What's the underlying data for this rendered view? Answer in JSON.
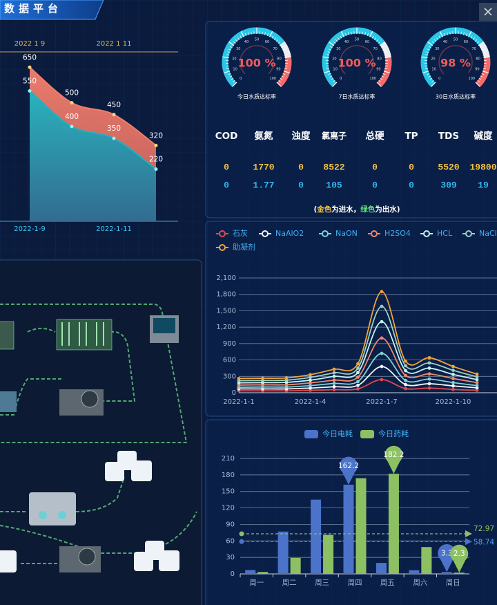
{
  "header": {
    "title": "数据平台"
  },
  "chart_data": [
    {
      "type": "area",
      "categories": [
        "2022-1-9",
        null,
        "2022-1-11",
        null
      ],
      "top_categories": [
        "2022 1 9",
        null,
        "2022 1 11",
        null
      ],
      "series": [
        {
          "color": "#f07c6c",
          "values": [
            650,
            500,
            450,
            320
          ]
        },
        {
          "color": "#1eb2bf",
          "values": [
            550,
            400,
            350,
            220
          ]
        }
      ]
    },
    {
      "type": "gauge",
      "title": "今日水质达标率",
      "values": [
        100
      ],
      "value_labels": [
        "100 %"
      ],
      "ylim": [
        0,
        100
      ],
      "yticks": [
        0,
        10,
        20,
        30,
        40,
        50,
        60,
        70,
        80,
        90,
        100
      ]
    },
    {
      "type": "gauge",
      "title": "7日水质达标率",
      "values": [
        100
      ],
      "value_labels": [
        "100 %"
      ],
      "ylim": [
        0,
        100
      ],
      "yticks": [
        0,
        10,
        20,
        30,
        40,
        50,
        60,
        70,
        80,
        90,
        100
      ]
    },
    {
      "type": "gauge",
      "title": "30日水质达标率",
      "values": [
        98
      ],
      "value_labels": [
        "98 %"
      ],
      "ylim": [
        0,
        100
      ],
      "yticks": [
        0,
        10,
        20,
        30,
        40,
        50,
        60,
        70,
        80,
        90,
        100
      ]
    },
    {
      "type": "line",
      "categories": [
        "2022-1-1",
        null,
        null,
        "2022-1-4",
        null,
        null,
        "2022-1-7",
        null,
        null,
        "2022-1-10",
        null
      ],
      "ylim": [
        0,
        2100
      ],
      "yticks": [
        0,
        300,
        600,
        900,
        {
          "value": 1200,
          "label": "1,200"
        },
        {
          "value": 1500,
          "label": "1,500"
        },
        {
          "value": 1800,
          "label": "1,800"
        },
        {
          "value": 2100,
          "label": "2,100"
        }
      ],
      "grid": true,
      "series": [
        {
          "name": "石灰",
          "color": "#e8484a",
          "values": [
            35,
            35,
            35,
            45,
            55,
            70,
            240,
            75,
            85,
            60,
            45
          ]
        },
        {
          "name": "NaAlO2",
          "color": "#f2f5f8",
          "values": [
            70,
            70,
            70,
            85,
            110,
            135,
            480,
            150,
            165,
            125,
            90
          ]
        },
        {
          "name": "NaON",
          "color": "#7fd3d6",
          "values": [
            100,
            105,
            105,
            130,
            170,
            205,
            720,
            225,
            250,
            185,
            130
          ]
        },
        {
          "name": "H2SO4",
          "color": "#f2876a",
          "values": [
            140,
            145,
            145,
            180,
            230,
            285,
            1000,
            315,
            345,
            260,
            185
          ]
        },
        {
          "name": "HCL",
          "color": "#c2f3ef",
          "values": [
            180,
            185,
            190,
            230,
            300,
            370,
            1300,
            405,
            450,
            335,
            240
          ]
        },
        {
          "name": "NaClO",
          "color": "#9ccfc0",
          "values": [
            220,
            225,
            230,
            280,
            365,
            450,
            1580,
            495,
            545,
            410,
            290
          ]
        },
        {
          "name": "助凝剂",
          "color": "#f2a23a",
          "values": [
            260,
            265,
            270,
            330,
            430,
            530,
            1850,
            580,
            640,
            480,
            340
          ]
        }
      ]
    },
    {
      "type": "bar",
      "categories": [
        "周一",
        "周二",
        "周三",
        "周四",
        "周五",
        "周六",
        "周日"
      ],
      "ylim": [
        0,
        210
      ],
      "yticks": [
        0,
        30,
        60,
        90,
        120,
        150,
        180,
        210
      ],
      "grid": true,
      "series": [
        {
          "name": "今日电耗",
          "color": "#4b73c9",
          "values": [
            7,
            77,
            135,
            162.2,
            20,
            6.7,
            3.3
          ],
          "average": 58.74,
          "pins": [
            3,
            6
          ]
        },
        {
          "name": "今日药耗",
          "color": "#8dc063",
          "values": [
            3.5,
            29,
            71,
            174,
            182.2,
            48.79,
            2.3
          ],
          "average": 72.97,
          "pins": [
            4,
            6
          ]
        }
      ]
    }
  ],
  "table": {
    "columns": [
      "COD",
      "氨氮",
      "浊度",
      "氯离子",
      "总硬",
      "TP",
      "TDS",
      "碱度"
    ],
    "rows": [
      [
        0,
        1770,
        0,
        8522,
        0,
        0,
        5520,
        19800
      ],
      [
        0,
        1.77,
        0,
        105,
        0,
        0,
        309,
        19
      ]
    ]
  },
  "note": [
    "(",
    "金色",
    "为进水，",
    "绿色",
    "为出水)"
  ]
}
